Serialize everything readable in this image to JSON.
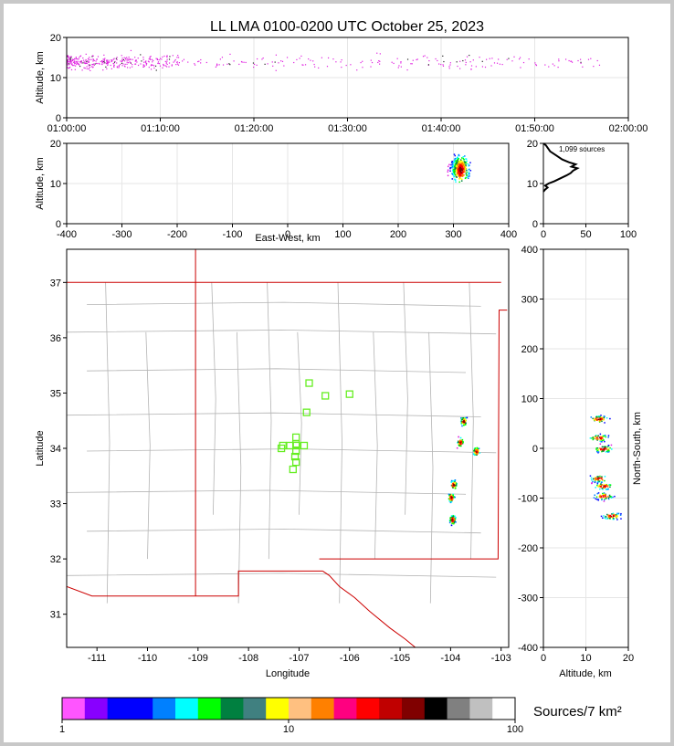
{
  "title": "LL LMA 0100-0200 UTC October 25, 2023",
  "colors": {
    "frame": "#c8c8c8",
    "county_lines": "#b4b4b4",
    "state_lines": "#cc0000",
    "station_markers": "#66ee22",
    "grid": "#e6e6e6"
  },
  "chart_data": [
    {
      "id": "time-height",
      "type": "scatter",
      "ylabel": "Altitude, km",
      "xlim": [
        "01:00:00",
        "02:00:00"
      ],
      "ylim": [
        0,
        20
      ],
      "x_ticks": [
        "01:00:00",
        "01:10:00",
        "01:20:00",
        "01:30:00",
        "01:40:00",
        "01:50:00",
        "02:00:00"
      ],
      "y_ticks": [
        "0",
        "10",
        "20"
      ],
      "grid": true,
      "point_color": "magenta"
    },
    {
      "id": "east-west-altitude",
      "type": "scatter",
      "xlabel": "East-West, km",
      "ylabel": "Altitude, km",
      "xlim": [
        -400,
        400
      ],
      "ylim": [
        0,
        20
      ],
      "x_ticks": [
        "-400",
        "-300",
        "-200",
        "-100",
        "0",
        "100",
        "200",
        "300",
        "400"
      ],
      "y_ticks": [
        "0",
        "10",
        "20"
      ],
      "grid": true,
      "density_center": {
        "x": 310,
        "y": 14
      }
    },
    {
      "id": "altitude-histogram",
      "type": "line",
      "annotation": "1,099 sources",
      "xlim": [
        0,
        100
      ],
      "ylim": [
        0,
        20
      ],
      "x_ticks": [
        "0",
        "50",
        "100"
      ],
      "y_ticks": [
        "0",
        "10",
        "20"
      ],
      "profile": [
        [
          0,
          20
        ],
        [
          3,
          19.5
        ],
        [
          8,
          18
        ],
        [
          15,
          17
        ],
        [
          22,
          16
        ],
        [
          30,
          15.3
        ],
        [
          38,
          14.8
        ],
        [
          33,
          14.2
        ],
        [
          40,
          13.8
        ],
        [
          35,
          13.2
        ],
        [
          32,
          12.6
        ],
        [
          27,
          12
        ],
        [
          20,
          11.3
        ],
        [
          13,
          10.6
        ],
        [
          6,
          10
        ],
        [
          2,
          9.5
        ],
        [
          5,
          9
        ],
        [
          2,
          8.5
        ],
        [
          0,
          8
        ]
      ]
    },
    {
      "id": "plan-view-map",
      "type": "scatter",
      "xlabel": "Longitude",
      "ylabel": "Latitude",
      "xlim": [
        -111.6,
        -102.85
      ],
      "ylim": [
        30.4,
        37.6
      ],
      "x_ticks": [
        "-111",
        "-110",
        "-109",
        "-108",
        "-107",
        "-106",
        "-105",
        "-104",
        "-103"
      ],
      "y_ticks": [
        "31",
        "32",
        "33",
        "34",
        "35",
        "36",
        "37"
      ],
      "stations": [
        [
          -107.32,
          34.05
        ],
        [
          -107.18,
          34.05
        ],
        [
          -107.05,
          34.05
        ],
        [
          -106.9,
          34.05
        ],
        [
          -107.06,
          34.2
        ],
        [
          -107.06,
          34.08
        ],
        [
          -107.06,
          33.95
        ],
        [
          -107.08,
          33.85
        ],
        [
          -107.06,
          33.75
        ],
        [
          -107.12,
          33.62
        ],
        [
          -107.35,
          34.0
        ],
        [
          -106.8,
          35.18
        ],
        [
          -106.48,
          34.95
        ],
        [
          -106.0,
          34.98
        ],
        [
          -106.85,
          34.65
        ]
      ],
      "clusters": [
        {
          "lon": -103.75,
          "lat": 34.5
        },
        {
          "lon": -103.82,
          "lat": 34.12
        },
        {
          "lon": -103.95,
          "lat": 33.35
        },
        {
          "lon": -104.0,
          "lat": 33.12
        },
        {
          "lon": -103.5,
          "lat": 33.95
        },
        {
          "lon": -103.97,
          "lat": 32.72
        }
      ]
    },
    {
      "id": "north-south-altitude",
      "type": "scatter",
      "xlabel": "Altitude, km",
      "ylabel": "North-South, km",
      "xlim": [
        0,
        20
      ],
      "ylim": [
        -400,
        400
      ],
      "x_ticks": [
        "0",
        "10",
        "20"
      ],
      "y_ticks": [
        "-400",
        "-300",
        "-200",
        "-100",
        "0",
        "100",
        "200",
        "300",
        "400"
      ],
      "grid": true
    },
    {
      "id": "colorbar",
      "type": "heatmap",
      "label": "Sources/7 km²",
      "scale": "log",
      "range": [
        1,
        100
      ],
      "tick_labels": [
        "1",
        "10",
        "100"
      ],
      "colors": [
        "#ff55ff",
        "#8800ff",
        "#0000ff",
        "#0000ff",
        "#0080ff",
        "#00ffff",
        "#00ff00",
        "#008040",
        "#408080",
        "#ffff00",
        "#ffc080",
        "#ff8000",
        "#ff0080",
        "#ff0000",
        "#c00000",
        "#800000",
        "#000000",
        "#808080",
        "#c0c0c0",
        "#ffffff"
      ]
    }
  ]
}
